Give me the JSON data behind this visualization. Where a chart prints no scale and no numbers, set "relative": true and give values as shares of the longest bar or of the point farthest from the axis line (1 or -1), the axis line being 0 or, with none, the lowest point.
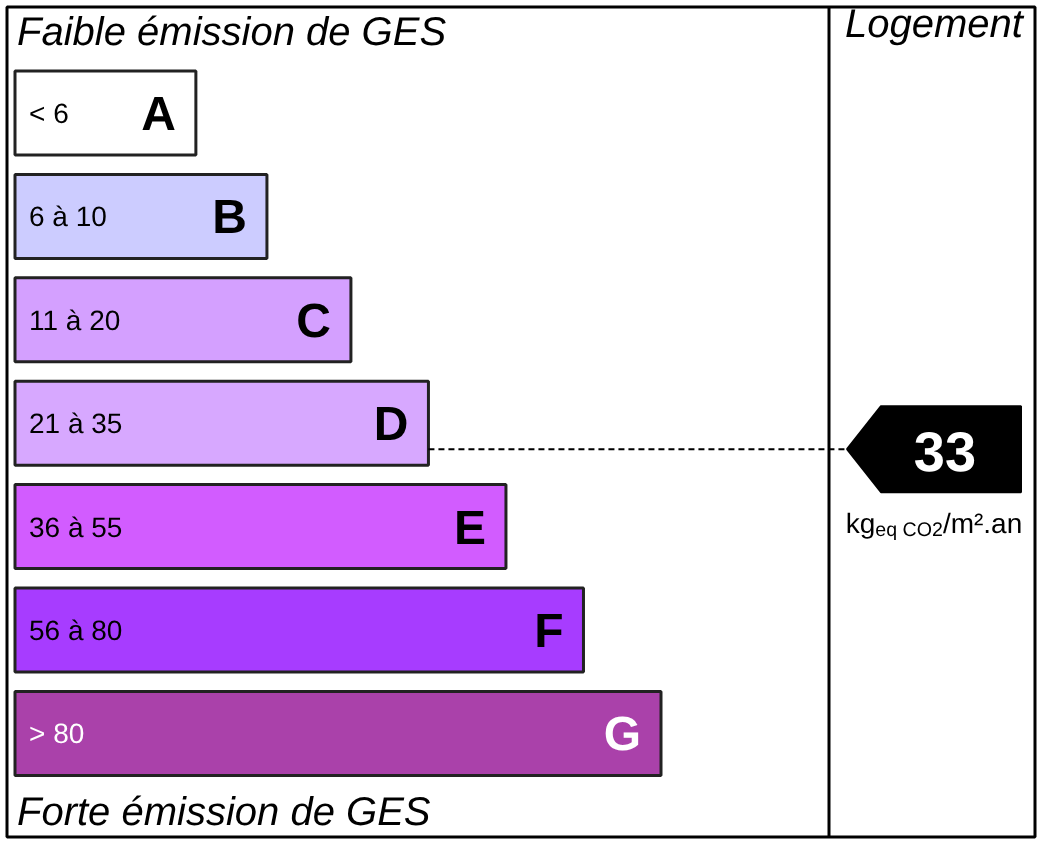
{
  "chart_data": {
    "type": "bar",
    "orientation": "horizontal",
    "relative": true,
    "title": "Faible émission de GES",
    "categories": [
      "A",
      "B",
      "C",
      "D",
      "E",
      "F",
      "G"
    ],
    "values": [
      0.28,
      0.39,
      0.52,
      0.64,
      0.76,
      0.88,
      1
    ],
    "colors": [
      "#ffffff",
      "#ccccff",
      "#d4a0ff",
      "#d7a8ff",
      "#d25cff",
      "#a73cff",
      "#aa41aa"
    ],
    "annotations": [
      "Forte émission de GES",
      "Logement",
      "kg$_{eq CO2}$/m².an",
      "< 6",
      "6 à 10",
      "11 à 20",
      "21 à 35",
      "36 à 55",
      "56 à 80",
      "> 80"
    ],
    "ref_lines": [
      {
        "axis": "y",
        "value": "D",
        "label": "33",
        "color": "#000000",
        "line_style": "dotted"
      }
    ]
  }
}
